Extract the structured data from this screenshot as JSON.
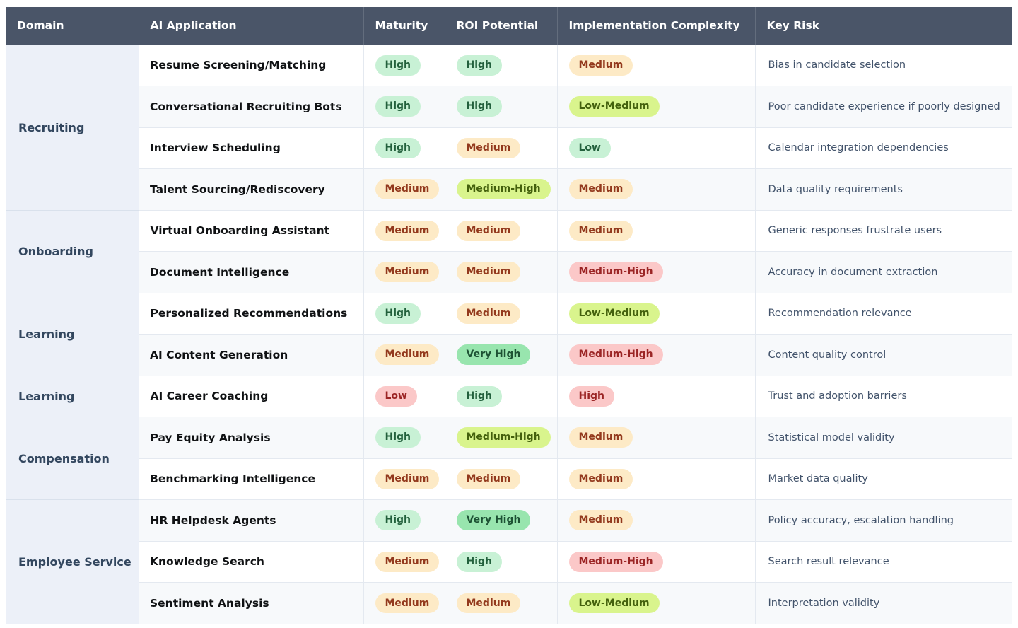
{
  "theme": {
    "header_bg": "#4a5568",
    "header_text": "#ffffff",
    "domain_bg": "#ecf0f8",
    "domain_text": "#33475f",
    "app_text": "#101214",
    "risk_text": "#42536b",
    "row_alt_bg": "#f7f9fb",
    "border": "#e4e9f0",
    "group_border": "#d9e1ec"
  },
  "table": {
    "columns": [
      {
        "key": "domain",
        "label": "Domain"
      },
      {
        "key": "application",
        "label": "AI Application"
      },
      {
        "key": "maturity",
        "label": "Maturity"
      },
      {
        "key": "roi",
        "label": "ROI Potential"
      },
      {
        "key": "complexity",
        "label": "Implementation Complexity"
      },
      {
        "key": "risk",
        "label": "Key Risk"
      }
    ],
    "badge_styles": {
      "green": {
        "bg": "#c8f1d5",
        "text": "#22603c"
      },
      "strong_green": {
        "bg": "#98e5ae",
        "text": "#1d5234"
      },
      "orange": {
        "bg": "#fdeac6",
        "text": "#93391d"
      },
      "lime": {
        "bg": "#d9f48d",
        "text": "#44610d"
      },
      "pink": {
        "bg": "#fbc8c8",
        "text": "#9b2525"
      }
    },
    "groups": [
      {
        "domain": "Recruiting",
        "rows": [
          {
            "app": "Resume Screening/Matching",
            "maturity": {
              "label": "High",
              "color": "green"
            },
            "roi": {
              "label": "High",
              "color": "green"
            },
            "complexity": {
              "label": "Medium",
              "color": "orange"
            },
            "risk": "Bias in candidate selection"
          },
          {
            "app": "Conversational Recruiting Bots",
            "maturity": {
              "label": "High",
              "color": "green"
            },
            "roi": {
              "label": "High",
              "color": "green"
            },
            "complexity": {
              "label": "Low-Medium",
              "color": "lime"
            },
            "risk": "Poor candidate experience if poorly designed"
          },
          {
            "app": "Interview Scheduling",
            "maturity": {
              "label": "High",
              "color": "green"
            },
            "roi": {
              "label": "Medium",
              "color": "orange"
            },
            "complexity": {
              "label": "Low",
              "color": "green"
            },
            "risk": "Calendar integration dependencies"
          },
          {
            "app": "Talent Sourcing/Rediscovery",
            "maturity": {
              "label": "Medium",
              "color": "orange"
            },
            "roi": {
              "label": "Medium-High",
              "color": "lime"
            },
            "complexity": {
              "label": "Medium",
              "color": "orange"
            },
            "risk": "Data quality requirements"
          }
        ]
      },
      {
        "domain": "Onboarding",
        "rows": [
          {
            "app": "Virtual Onboarding Assistant",
            "maturity": {
              "label": "Medium",
              "color": "orange"
            },
            "roi": {
              "label": "Medium",
              "color": "orange"
            },
            "complexity": {
              "label": "Medium",
              "color": "orange"
            },
            "risk": "Generic responses frustrate users"
          },
          {
            "app": "Document Intelligence",
            "maturity": {
              "label": "Medium",
              "color": "orange"
            },
            "roi": {
              "label": "Medium",
              "color": "orange"
            },
            "complexity": {
              "label": "Medium-High",
              "color": "pink"
            },
            "risk": "Accuracy in document extraction"
          }
        ]
      },
      {
        "domain": "Learning",
        "rows": [
          {
            "app": "Personalized Recommendations",
            "maturity": {
              "label": "High",
              "color": "green"
            },
            "roi": {
              "label": "Medium",
              "color": "orange"
            },
            "complexity": {
              "label": "Low-Medium",
              "color": "lime"
            },
            "risk": "Recommendation relevance"
          },
          {
            "app": "AI Content Generation",
            "maturity": {
              "label": "Medium",
              "color": "orange"
            },
            "roi": {
              "label": "Very High",
              "color": "strong_green"
            },
            "complexity": {
              "label": "Medium-High",
              "color": "pink"
            },
            "risk": "Content quality control"
          }
        ]
      },
      {
        "domain": "Learning",
        "rows": [
          {
            "app": "AI Career Coaching",
            "maturity": {
              "label": "Low",
              "color": "pink"
            },
            "roi": {
              "label": "High",
              "color": "green"
            },
            "complexity": {
              "label": "High",
              "color": "pink"
            },
            "risk": "Trust and adoption barriers"
          }
        ]
      },
      {
        "domain": "Compensation",
        "rows": [
          {
            "app": "Pay Equity Analysis",
            "maturity": {
              "label": "High",
              "color": "green"
            },
            "roi": {
              "label": "Medium-High",
              "color": "lime"
            },
            "complexity": {
              "label": "Medium",
              "color": "orange"
            },
            "risk": "Statistical model validity"
          },
          {
            "app": "Benchmarking Intelligence",
            "maturity": {
              "label": "Medium",
              "color": "orange"
            },
            "roi": {
              "label": "Medium",
              "color": "orange"
            },
            "complexity": {
              "label": "Medium",
              "color": "orange"
            },
            "risk": "Market data quality"
          }
        ]
      },
      {
        "domain": "Employee Service",
        "rows": [
          {
            "app": "HR Helpdesk Agents",
            "maturity": {
              "label": "High",
              "color": "green"
            },
            "roi": {
              "label": "Very High",
              "color": "strong_green"
            },
            "complexity": {
              "label": "Medium",
              "color": "orange"
            },
            "risk": "Policy accuracy, escalation handling"
          },
          {
            "app": "Knowledge Search",
            "maturity": {
              "label": "Medium",
              "color": "orange"
            },
            "roi": {
              "label": "High",
              "color": "green"
            },
            "complexity": {
              "label": "Medium-High",
              "color": "pink"
            },
            "risk": "Search result relevance"
          },
          {
            "app": "Sentiment Analysis",
            "maturity": {
              "label": "Medium",
              "color": "orange"
            },
            "roi": {
              "label": "Medium",
              "color": "orange"
            },
            "complexity": {
              "label": "Low-Medium",
              "color": "lime"
            },
            "risk": "Interpretation validity"
          }
        ]
      }
    ]
  }
}
